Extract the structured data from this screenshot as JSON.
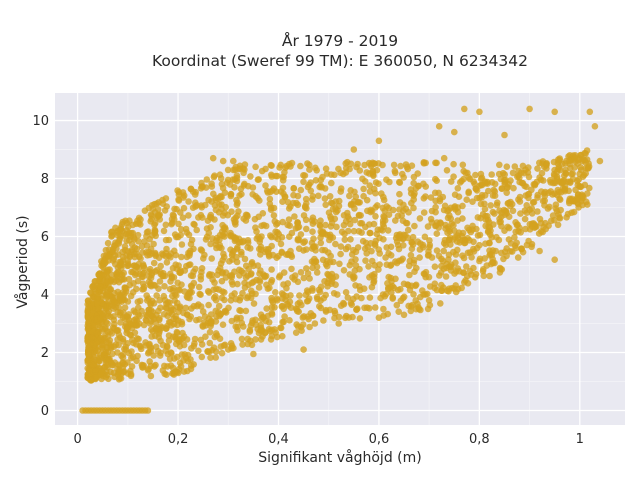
{
  "chart_data": {
    "type": "scatter",
    "title_line1": "År 1979 - 2019",
    "title_line2": "Koordinat (Sweref 99 TM): E 360050, N 6234342",
    "xlabel": "Signifikant våghöjd (m)",
    "ylabel": "Vågperiod (s)",
    "xlim": [
      -0.045,
      1.09
    ],
    "ylim": [
      -0.5,
      10.95
    ],
    "x_ticks": [
      0,
      0.2,
      0.4,
      0.6,
      0.8,
      1.0
    ],
    "x_tick_labels": [
      "0",
      "0,2",
      "0,4",
      "0,6",
      "0,8",
      "1"
    ],
    "y_ticks": [
      0,
      2,
      4,
      6,
      8,
      10
    ],
    "y_tick_labels": [
      "0",
      "2",
      "4",
      "6",
      "8",
      "10"
    ],
    "grid": true,
    "background": "#e9e9f1",
    "marker_color": "#d4a21f",
    "point_cloud": {
      "lower_edge": [
        [
          0.02,
          1.0
        ],
        [
          0.2,
          1.2
        ],
        [
          0.3,
          2.0
        ],
        [
          0.5,
          3.0
        ],
        [
          0.7,
          3.5
        ],
        [
          0.85,
          4.8
        ],
        [
          1.0,
          7.0
        ]
      ],
      "upper_edge": [
        [
          0.02,
          3.8
        ],
        [
          0.07,
          6.3
        ],
        [
          0.2,
          7.6
        ],
        [
          0.32,
          8.5
        ],
        [
          0.6,
          8.6
        ],
        [
          0.9,
          8.5
        ],
        [
          1.02,
          9.0
        ]
      ],
      "zero_period_x_range": [
        0.01,
        0.14
      ],
      "outliers": [
        [
          0.77,
          10.4
        ],
        [
          0.8,
          10.3
        ],
        [
          0.9,
          10.4
        ],
        [
          0.95,
          10.3
        ],
        [
          1.02,
          10.3
        ],
        [
          1.03,
          9.8
        ],
        [
          0.72,
          9.8
        ],
        [
          0.75,
          9.6
        ],
        [
          0.85,
          9.5
        ],
        [
          0.6,
          9.3
        ],
        [
          0.55,
          9.0
        ],
        [
          0.31,
          8.6
        ],
        [
          0.29,
          8.6
        ],
        [
          0.27,
          8.7
        ],
        [
          0.11,
          6.4
        ],
        [
          0.09,
          6.5
        ],
        [
          0.45,
          2.1
        ],
        [
          0.35,
          1.95
        ],
        [
          0.3,
          2.1
        ],
        [
          0.95,
          5.2
        ],
        [
          0.92,
          5.5
        ],
        [
          0.88,
          6.3
        ],
        [
          0.85,
          6.2
        ],
        [
          0.8,
          5.7
        ],
        [
          0.76,
          4.8
        ],
        [
          0.75,
          4.2
        ],
        [
          0.7,
          3.8
        ],
        [
          0.68,
          3.5
        ],
        [
          1.04,
          8.6
        ],
        [
          0.98,
          7.3
        ],
        [
          0.73,
          8.7
        ],
        [
          0.52,
          3.0
        ],
        [
          0.6,
          3.2
        ],
        [
          0.65,
          3.3
        ]
      ]
    }
  }
}
